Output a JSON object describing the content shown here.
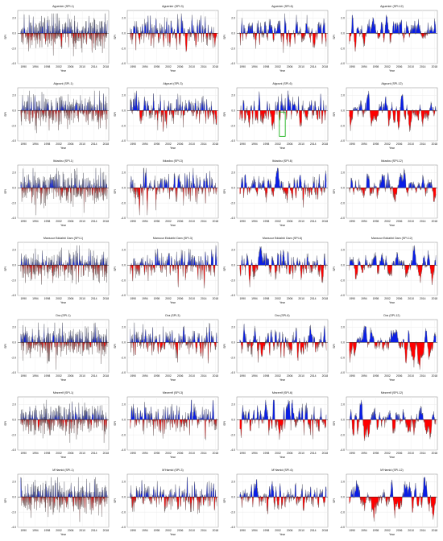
{
  "figure": {
    "colors": {
      "positive": "#0a1ee6",
      "negative": "#ff0000",
      "line": "#555555",
      "frame": "#888888",
      "highlight": "#00aa00"
    }
  },
  "chart_data": [
    {
      "type": "area",
      "title": "Aguenier (SPI-1)",
      "ylabel": "SPI",
      "xlabel": "Year",
      "ylim": [
        -4,
        3
      ],
      "yticks": [
        2,
        0,
        -2,
        -4
      ],
      "xticks": [
        "1990",
        "1994",
        "1998",
        "2002",
        "2006",
        "2010",
        "2014",
        "2018"
      ],
      "xlim": [
        1988,
        2019
      ],
      "seed": 11,
      "smooth": 1
    },
    {
      "type": "area",
      "title": "Aguenier (SPI-3)",
      "ylabel": "SPI",
      "xlabel": "Year",
      "ylim": [
        -4,
        3
      ],
      "yticks": [
        2,
        0,
        -2,
        -4
      ],
      "xticks": [
        "1990",
        "1994",
        "1998",
        "2002",
        "2006",
        "2010",
        "2014",
        "2018"
      ],
      "xlim": [
        1988,
        2019
      ],
      "seed": 12,
      "smooth": 3
    },
    {
      "type": "area",
      "title": "Aguenier (SPI-6)",
      "ylabel": "SPI",
      "xlabel": "Year",
      "ylim": [
        -4,
        3
      ],
      "yticks": [
        2,
        0,
        -2,
        -4
      ],
      "xticks": [
        "1990",
        "1994",
        "1998",
        "2002",
        "2006",
        "2010",
        "2014",
        "2018"
      ],
      "xlim": [
        1988,
        2019
      ],
      "seed": 13,
      "smooth": 6
    },
    {
      "type": "area",
      "title": "Aguenier (SPI-12)",
      "ylabel": "SPI",
      "xlabel": "Year",
      "ylim": [
        -4,
        3
      ],
      "yticks": [
        2,
        0,
        -2,
        -4
      ],
      "xticks": [
        "1990",
        "1994",
        "1998",
        "2002",
        "2006",
        "2010",
        "2014",
        "2018"
      ],
      "xlim": [
        1988,
        2019
      ],
      "seed": 14,
      "smooth": 12
    },
    {
      "type": "area",
      "title": "Algouni (SPI-1)",
      "ylabel": "SPI",
      "xlabel": "Year",
      "ylim": [
        -4,
        3
      ],
      "yticks": [
        2,
        0,
        -2,
        -4
      ],
      "xticks": [
        "1990",
        "1994",
        "1998",
        "2002",
        "2006",
        "2010",
        "2014",
        "2018"
      ],
      "xlim": [
        1988,
        2019
      ],
      "seed": 21,
      "smooth": 1
    },
    {
      "type": "area",
      "title": "Algouni (SPI-3)",
      "ylabel": "SPI",
      "xlabel": "Year",
      "ylim": [
        -4,
        3
      ],
      "yticks": [
        2,
        0,
        -2,
        -4
      ],
      "xticks": [
        "1990",
        "1994",
        "1998",
        "2002",
        "2006",
        "2010",
        "2014",
        "2018"
      ],
      "xlim": [
        1988,
        2019
      ],
      "seed": 22,
      "smooth": 3
    },
    {
      "type": "area",
      "title": "Algouni (SPI-6)",
      "ylabel": "SPI",
      "xlabel": "Year",
      "ylim": [
        -4,
        3
      ],
      "yticks": [
        2,
        0,
        -2,
        -4
      ],
      "xticks": [
        "1990",
        "1994",
        "1998",
        "2002",
        "2006",
        "2010",
        "2014",
        "2018"
      ],
      "xlim": [
        1988,
        2019
      ],
      "seed": 23,
      "smooth": 6,
      "highlight": [
        2002.5,
        2004.5,
        -3.4,
        -0.2
      ]
    },
    {
      "type": "area",
      "title": "Algouni (SPI-12)",
      "ylabel": "SPI",
      "xlabel": "Year",
      "ylim": [
        -4,
        3
      ],
      "yticks": [
        2,
        0,
        -2,
        -4
      ],
      "xticks": [
        "1990",
        "1994",
        "1998",
        "2002",
        "2006",
        "2010",
        "2014",
        "2018"
      ],
      "xlim": [
        1988,
        2019
      ],
      "seed": 24,
      "smooth": 12
    },
    {
      "type": "area",
      "title": "Ikkadou (SPI-1)",
      "ylabel": "SPI",
      "xlabel": "Year",
      "ylim": [
        -4,
        3
      ],
      "yticks": [
        2,
        0,
        -2,
        -4
      ],
      "xticks": [
        "1990",
        "1994",
        "1998",
        "2002",
        "2006",
        "2010",
        "2014",
        "2018"
      ],
      "xlim": [
        1988,
        2019
      ],
      "seed": 31,
      "smooth": 1
    },
    {
      "type": "area",
      "title": "Ikkadou (SPI-3)",
      "ylabel": "SPI",
      "xlabel": "Year",
      "ylim": [
        -4,
        3
      ],
      "yticks": [
        2,
        0,
        -2,
        -4
      ],
      "xticks": [
        "1990",
        "1994",
        "1998",
        "2002",
        "2006",
        "2010",
        "2014",
        "2018"
      ],
      "xlim": [
        1988,
        2019
      ],
      "seed": 32,
      "smooth": 3
    },
    {
      "type": "area",
      "title": "Ikkadou (SPI-6)",
      "ylabel": "SPI",
      "xlabel": "Year",
      "ylim": [
        -4,
        3
      ],
      "yticks": [
        2,
        0,
        -2,
        -4
      ],
      "xticks": [
        "1990",
        "1994",
        "1998",
        "2002",
        "2006",
        "2010",
        "2014",
        "2018"
      ],
      "xlim": [
        1988,
        2019
      ],
      "seed": 33,
      "smooth": 6
    },
    {
      "type": "area",
      "title": "Ikkadou (SPI-12)",
      "ylabel": "SPI",
      "xlabel": "Year",
      "ylim": [
        -4,
        3
      ],
      "yticks": [
        2,
        0,
        -2,
        -4
      ],
      "xticks": [
        "1990",
        "1994",
        "1998",
        "2002",
        "2006",
        "2010",
        "2014",
        "2018"
      ],
      "xlim": [
        1988,
        2019
      ],
      "seed": 34,
      "smooth": 12
    },
    {
      "type": "area",
      "title": "Mansour Eddahbi Dam (SPI-1)",
      "ylabel": "SPI",
      "xlabel": "Year",
      "ylim": [
        -4,
        3
      ],
      "yticks": [
        2,
        0,
        -2,
        -4
      ],
      "xticks": [
        "1990",
        "1994",
        "1998",
        "2002",
        "2006",
        "2010",
        "2014",
        "2018"
      ],
      "xlim": [
        1988,
        2019
      ],
      "seed": 41,
      "smooth": 1
    },
    {
      "type": "area",
      "title": "Mansour Eddahbi Dam (SPI-3)",
      "ylabel": "SPI",
      "xlabel": "Year",
      "ylim": [
        -4,
        3
      ],
      "yticks": [
        2,
        0,
        -2,
        -4
      ],
      "xticks": [
        "1990",
        "1994",
        "1998",
        "2002",
        "2006",
        "2010",
        "2014",
        "2018"
      ],
      "xlim": [
        1988,
        2019
      ],
      "seed": 42,
      "smooth": 3
    },
    {
      "type": "area",
      "title": "Mansour Eddahbi Dam (SPI-6)",
      "ylabel": "SPI",
      "xlabel": "Year",
      "ylim": [
        -4,
        3
      ],
      "yticks": [
        2,
        0,
        -2,
        -4
      ],
      "xticks": [
        "1990",
        "1994",
        "1998",
        "2002",
        "2006",
        "2010",
        "2014",
        "2018"
      ],
      "xlim": [
        1988,
        2019
      ],
      "seed": 43,
      "smooth": 6
    },
    {
      "type": "area",
      "title": "Mansour Eddahbi Dam (SPI-12)",
      "ylabel": "SPI",
      "xlabel": "Year",
      "ylim": [
        -4,
        3
      ],
      "yticks": [
        2,
        0,
        -2,
        -4
      ],
      "xticks": [
        "1990",
        "1994",
        "1998",
        "2002",
        "2006",
        "2010",
        "2014",
        "2018"
      ],
      "xlim": [
        1988,
        2019
      ],
      "seed": 44,
      "smooth": 12
    },
    {
      "type": "area",
      "title": "Dra (SPI-1)",
      "ylabel": "SPI",
      "xlabel": "Year",
      "ylim": [
        -4,
        3
      ],
      "yticks": [
        2,
        0,
        -2,
        -4
      ],
      "xticks": [
        "1990",
        "1994",
        "1998",
        "2002",
        "2006",
        "2010",
        "2014",
        "2018"
      ],
      "xlim": [
        1988,
        2019
      ],
      "seed": 51,
      "smooth": 1
    },
    {
      "type": "area",
      "title": "Dra (SPI-3)",
      "ylabel": "SPI",
      "xlabel": "Year",
      "ylim": [
        -4,
        3
      ],
      "yticks": [
        2,
        0,
        -2,
        -4
      ],
      "xticks": [
        "1990",
        "1994",
        "1998",
        "2002",
        "2006",
        "2010",
        "2014",
        "2018"
      ],
      "xlim": [
        1988,
        2019
      ],
      "seed": 52,
      "smooth": 3
    },
    {
      "type": "area",
      "title": "Dra (SPI-6)",
      "ylabel": "SPI",
      "xlabel": "Year",
      "ylim": [
        -4,
        3
      ],
      "yticks": [
        2,
        0,
        -2,
        -4
      ],
      "xticks": [
        "1990",
        "1994",
        "1998",
        "2002",
        "2006",
        "2010",
        "2014",
        "2018"
      ],
      "xlim": [
        1988,
        2019
      ],
      "seed": 53,
      "smooth": 6
    },
    {
      "type": "area",
      "title": "Dra (SPI-12)",
      "ylabel": "SPI",
      "xlabel": "Year",
      "ylim": [
        -4,
        3
      ],
      "yticks": [
        2,
        0,
        -2,
        -4
      ],
      "xticks": [
        "1990",
        "1994",
        "1998",
        "2002",
        "2006",
        "2010",
        "2014",
        "2018"
      ],
      "xlim": [
        1988,
        2019
      ],
      "seed": 54,
      "smooth": 12
    },
    {
      "type": "area",
      "title": "Mezerrif (SPI-1)",
      "ylabel": "SPI",
      "xlabel": "Year",
      "ylim": [
        -4,
        3
      ],
      "yticks": [
        2,
        0,
        -2,
        -4
      ],
      "xticks": [
        "1990",
        "1994",
        "1998",
        "2002",
        "2006",
        "2010",
        "2014",
        "2018"
      ],
      "xlim": [
        1988,
        2019
      ],
      "seed": 61,
      "smooth": 1
    },
    {
      "type": "area",
      "title": "Mezerrif (SPI-3)",
      "ylabel": "SPI",
      "xlabel": "Year",
      "ylim": [
        -4,
        3
      ],
      "yticks": [
        2,
        0,
        -2,
        -4
      ],
      "xticks": [
        "1990",
        "1994",
        "1998",
        "2002",
        "2006",
        "2010",
        "2014",
        "2018"
      ],
      "xlim": [
        1988,
        2019
      ],
      "seed": 62,
      "smooth": 3
    },
    {
      "type": "area",
      "title": "Mezerrif (SPI-6)",
      "ylabel": "SPI",
      "xlabel": "Year",
      "ylim": [
        -4,
        3
      ],
      "yticks": [
        2,
        0,
        -2,
        -4
      ],
      "xticks": [
        "1990",
        "1994",
        "1998",
        "2002",
        "2006",
        "2010",
        "2014",
        "2018"
      ],
      "xlim": [
        1988,
        2019
      ],
      "seed": 63,
      "smooth": 6
    },
    {
      "type": "area",
      "title": "Mezerrif (SPI-12)",
      "ylabel": "SPI",
      "xlabel": "Year",
      "ylim": [
        -4,
        3
      ],
      "yticks": [
        2,
        0,
        -2,
        -4
      ],
      "xticks": [
        "1990",
        "1994",
        "1998",
        "2002",
        "2006",
        "2010",
        "2014",
        "2018"
      ],
      "xlim": [
        1988,
        2019
      ],
      "seed": 64,
      "smooth": 12
    },
    {
      "type": "area",
      "title": "M'Hamid (SPI-1)",
      "ylabel": "SPI",
      "xlabel": "Year",
      "ylim": [
        -4,
        3
      ],
      "yticks": [
        2,
        0,
        -2,
        -4
      ],
      "xticks": [
        "1990",
        "1994",
        "1998",
        "2002",
        "2006",
        "2010",
        "2014",
        "2018"
      ],
      "xlim": [
        1988,
        2019
      ],
      "seed": 71,
      "smooth": 1
    },
    {
      "type": "area",
      "title": "M'Hamid (SPI-3)",
      "ylabel": "SPI",
      "xlabel": "Year",
      "ylim": [
        -4,
        3
      ],
      "yticks": [
        2,
        0,
        -2,
        -4
      ],
      "xticks": [
        "1990",
        "1994",
        "1998",
        "2002",
        "2006",
        "2010",
        "2014",
        "2018"
      ],
      "xlim": [
        1988,
        2019
      ],
      "seed": 72,
      "smooth": 3
    },
    {
      "type": "area",
      "title": "M'Hamid (SPI-6)",
      "ylabel": "SPI",
      "xlabel": "Year",
      "ylim": [
        -4,
        3
      ],
      "yticks": [
        2,
        0,
        -2,
        -4
      ],
      "xticks": [
        "1990",
        "1994",
        "1998",
        "2002",
        "2006",
        "2010",
        "2014",
        "2018"
      ],
      "xlim": [
        1988,
        2019
      ],
      "seed": 73,
      "smooth": 6
    },
    {
      "type": "area",
      "title": "M'Hamid (SPI-12)",
      "ylabel": "SPI",
      "xlabel": "Year",
      "ylim": [
        -4,
        3
      ],
      "yticks": [
        2,
        0,
        -2,
        -4
      ],
      "xticks": [
        "1990",
        "1994",
        "1998",
        "2002",
        "2006",
        "2010",
        "2014",
        "2018"
      ],
      "xlim": [
        1988,
        2019
      ],
      "seed": 74,
      "smooth": 12
    }
  ]
}
